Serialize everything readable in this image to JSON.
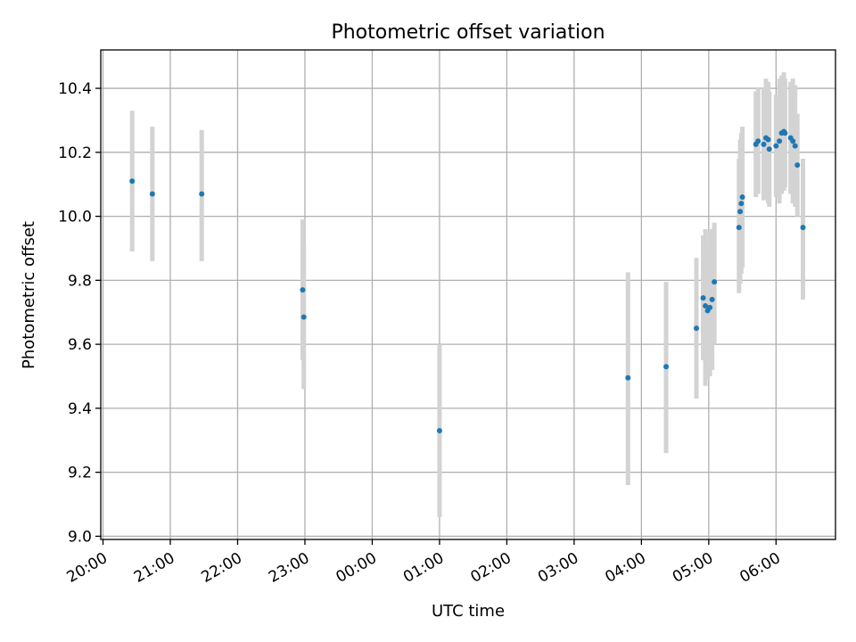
{
  "chart_data": {
    "type": "scatter",
    "title": "Photometric offset variation",
    "xlabel": "UTC time",
    "ylabel": "Photometric offset",
    "x_unit": "time of day (UTC), night of 20:00 to 06:00 next day",
    "x_tick_labels": [
      "20:00",
      "21:00",
      "22:00",
      "23:00",
      "00:00",
      "01:00",
      "02:00",
      "03:00",
      "04:00",
      "05:00",
      "06:00"
    ],
    "y_ticks": [
      9.0,
      9.2,
      9.4,
      9.6,
      9.8,
      10.0,
      10.2,
      10.4
    ],
    "y_tick_labels": [
      "9.0",
      "9.2",
      "9.4",
      "9.6",
      "9.8",
      "10.0",
      "10.2",
      "10.4"
    ],
    "xlim": [
      "19:58",
      "06:53"
    ],
    "ylim": [
      8.99,
      10.52
    ],
    "grid": true,
    "marker_color": "#1f77b4",
    "errorbar_color": "#d3d3d3",
    "points": [
      {
        "t": "20:26",
        "y": 10.11,
        "lo": 9.89,
        "hi": 10.33
      },
      {
        "t": "20:44",
        "y": 10.07,
        "lo": 9.86,
        "hi": 10.28
      },
      {
        "t": "21:28",
        "y": 10.07,
        "lo": 9.86,
        "hi": 10.27
      },
      {
        "t": "22:58",
        "y": 9.77,
        "lo": 9.55,
        "hi": 9.99
      },
      {
        "t": "22:59",
        "y": 9.685,
        "lo": 9.46,
        "hi": 9.91
      },
      {
        "t": "01:00",
        "y": 9.33,
        "lo": 9.06,
        "hi": 9.6
      },
      {
        "t": "03:48",
        "y": 9.495,
        "lo": 9.16,
        "hi": 9.825
      },
      {
        "t": "04:22",
        "y": 9.53,
        "lo": 9.26,
        "hi": 9.795
      },
      {
        "t": "04:49",
        "y": 9.65,
        "lo": 9.43,
        "hi": 9.87
      },
      {
        "t": "04:55",
        "y": 9.745,
        "lo": 9.55,
        "hi": 9.94
      },
      {
        "t": "04:57",
        "y": 9.72,
        "lo": 9.47,
        "hi": 9.96
      },
      {
        "t": "04:59",
        "y": 9.705,
        "lo": 9.49,
        "hi": 9.92
      },
      {
        "t": "05:01",
        "y": 9.715,
        "lo": 9.5,
        "hi": 9.95
      },
      {
        "t": "05:03",
        "y": 9.74,
        "lo": 9.52,
        "hi": 9.96
      },
      {
        "t": "05:05",
        "y": 9.795,
        "lo": 9.6,
        "hi": 9.98
      },
      {
        "t": "05:27",
        "y": 9.965,
        "lo": 9.76,
        "hi": 10.18
      },
      {
        "t": "05:28",
        "y": 10.015,
        "lo": 9.79,
        "hi": 10.24
      },
      {
        "t": "05:29",
        "y": 10.04,
        "lo": 9.82,
        "hi": 10.26
      },
      {
        "t": "05:30",
        "y": 10.06,
        "lo": 9.84,
        "hi": 10.28
      },
      {
        "t": "05:42",
        "y": 10.225,
        "lo": 10.06,
        "hi": 10.39
      },
      {
        "t": "05:44",
        "y": 10.235,
        "lo": 10.07,
        "hi": 10.4
      },
      {
        "t": "05:49",
        "y": 10.225,
        "lo": 10.05,
        "hi": 10.4
      },
      {
        "t": "05:51",
        "y": 10.245,
        "lo": 10.06,
        "hi": 10.43
      },
      {
        "t": "05:53",
        "y": 10.24,
        "lo": 10.04,
        "hi": 10.42
      },
      {
        "t": "05:54",
        "y": 10.21,
        "lo": 10.03,
        "hi": 10.39
      },
      {
        "t": "06:00",
        "y": 10.22,
        "lo": 10.06,
        "hi": 10.38
      },
      {
        "t": "06:03",
        "y": 10.235,
        "lo": 10.04,
        "hi": 10.43
      },
      {
        "t": "06:05",
        "y": 10.26,
        "lo": 10.07,
        "hi": 10.44
      },
      {
        "t": "06:07",
        "y": 10.265,
        "lo": 10.08,
        "hi": 10.45
      },
      {
        "t": "06:08",
        "y": 10.26,
        "lo": 10.09,
        "hi": 10.43
      },
      {
        "t": "06:13",
        "y": 10.245,
        "lo": 10.07,
        "hi": 10.42
      },
      {
        "t": "06:15",
        "y": 10.235,
        "lo": 10.04,
        "hi": 10.43
      },
      {
        "t": "06:17",
        "y": 10.22,
        "lo": 10.03,
        "hi": 10.41
      },
      {
        "t": "06:19",
        "y": 10.16,
        "lo": 10.0,
        "hi": 10.32
      },
      {
        "t": "06:24",
        "y": 9.965,
        "lo": 9.74,
        "hi": 10.18
      }
    ]
  }
}
